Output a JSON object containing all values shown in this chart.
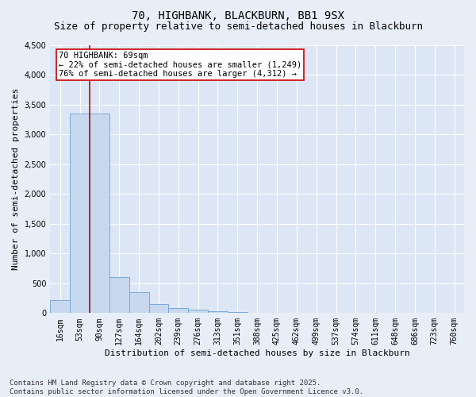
{
  "title": "70, HIGHBANK, BLACKBURN, BB1 9SX",
  "subtitle": "Size of property relative to semi-detached houses in Blackburn",
  "xlabel": "Distribution of semi-detached houses by size in Blackburn",
  "ylabel": "Number of semi-detached properties",
  "footer_line1": "Contains HM Land Registry data © Crown copyright and database right 2025.",
  "footer_line2": "Contains public sector information licensed under the Open Government Licence v3.0.",
  "annotation_line1": "70 HIGHBANK: 69sqm",
  "annotation_line2": "← 22% of semi-detached houses are smaller (1,249)",
  "annotation_line3": "76% of semi-detached houses are larger (4,312) →",
  "bar_color": "#c8d9ef",
  "bar_edge_color": "#6ca0d4",
  "categories": [
    "16sqm",
    "53sqm",
    "90sqm",
    "127sqm",
    "164sqm",
    "202sqm",
    "239sqm",
    "276sqm",
    "313sqm",
    "351sqm",
    "388sqm",
    "425sqm",
    "462sqm",
    "499sqm",
    "537sqm",
    "574sqm",
    "611sqm",
    "648sqm",
    "686sqm",
    "723sqm",
    "760sqm"
  ],
  "values": [
    220,
    3350,
    3350,
    600,
    350,
    150,
    80,
    55,
    35,
    20,
    10,
    3,
    0,
    0,
    0,
    0,
    0,
    0,
    0,
    0,
    0
  ],
  "ylim": [
    0,
    4500
  ],
  "yticks": [
    0,
    500,
    1000,
    1500,
    2000,
    2500,
    3000,
    3500,
    4000,
    4500
  ],
  "background_color": "#e8eef7",
  "plot_bg_color": "#dce6f5",
  "grid_color": "#ffffff",
  "red_line_color": "#cc0000",
  "annotation_box_facecolor": "#ffffff",
  "annotation_box_edgecolor": "#cc0000",
  "title_fontsize": 10,
  "subtitle_fontsize": 9,
  "axis_label_fontsize": 8,
  "tick_fontsize": 7,
  "annotation_fontsize": 7.5,
  "footer_fontsize": 6.5,
  "red_line_bar_index": 1,
  "bar_width": 1.0
}
